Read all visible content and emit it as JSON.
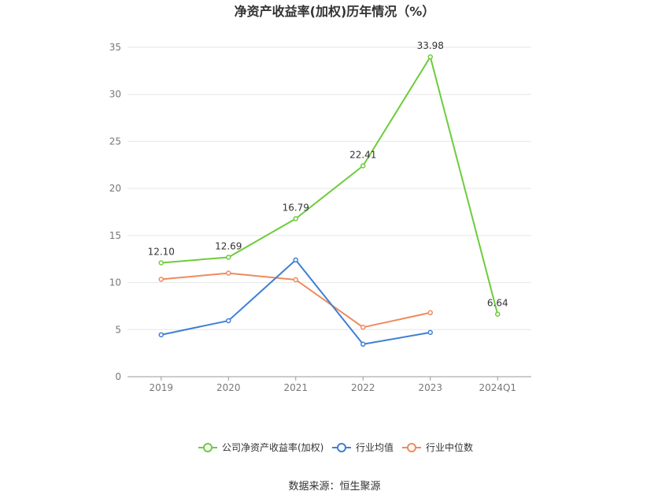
{
  "chart_data": {
    "type": "line",
    "title": "净资产收益率(加权)历年情况（%）",
    "categories": [
      "2019",
      "2020",
      "2021",
      "2022",
      "2023",
      "2024Q1"
    ],
    "ylim": [
      0,
      35
    ],
    "yticks": [
      0,
      5,
      10,
      15,
      20,
      25,
      30,
      35
    ],
    "grid": true,
    "legend_position": "bottom",
    "series": [
      {
        "name": "公司净资产收益率(加权)",
        "color": "#6dcc3c",
        "values": [
          12.1,
          12.69,
          16.79,
          22.41,
          33.98,
          6.64
        ],
        "labels": [
          "12.10",
          "12.69",
          "16.79",
          "22.41",
          "33.98",
          "6.64"
        ]
      },
      {
        "name": "行业均值",
        "color": "#3f7fd6",
        "values": [
          4.45,
          5.95,
          12.4,
          3.45,
          4.7,
          null
        ]
      },
      {
        "name": "行业中位数",
        "color": "#f08a5d",
        "values": [
          10.35,
          11.0,
          10.3,
          5.25,
          6.8,
          null
        ]
      }
    ],
    "source": "数据来源：恒生聚源"
  }
}
